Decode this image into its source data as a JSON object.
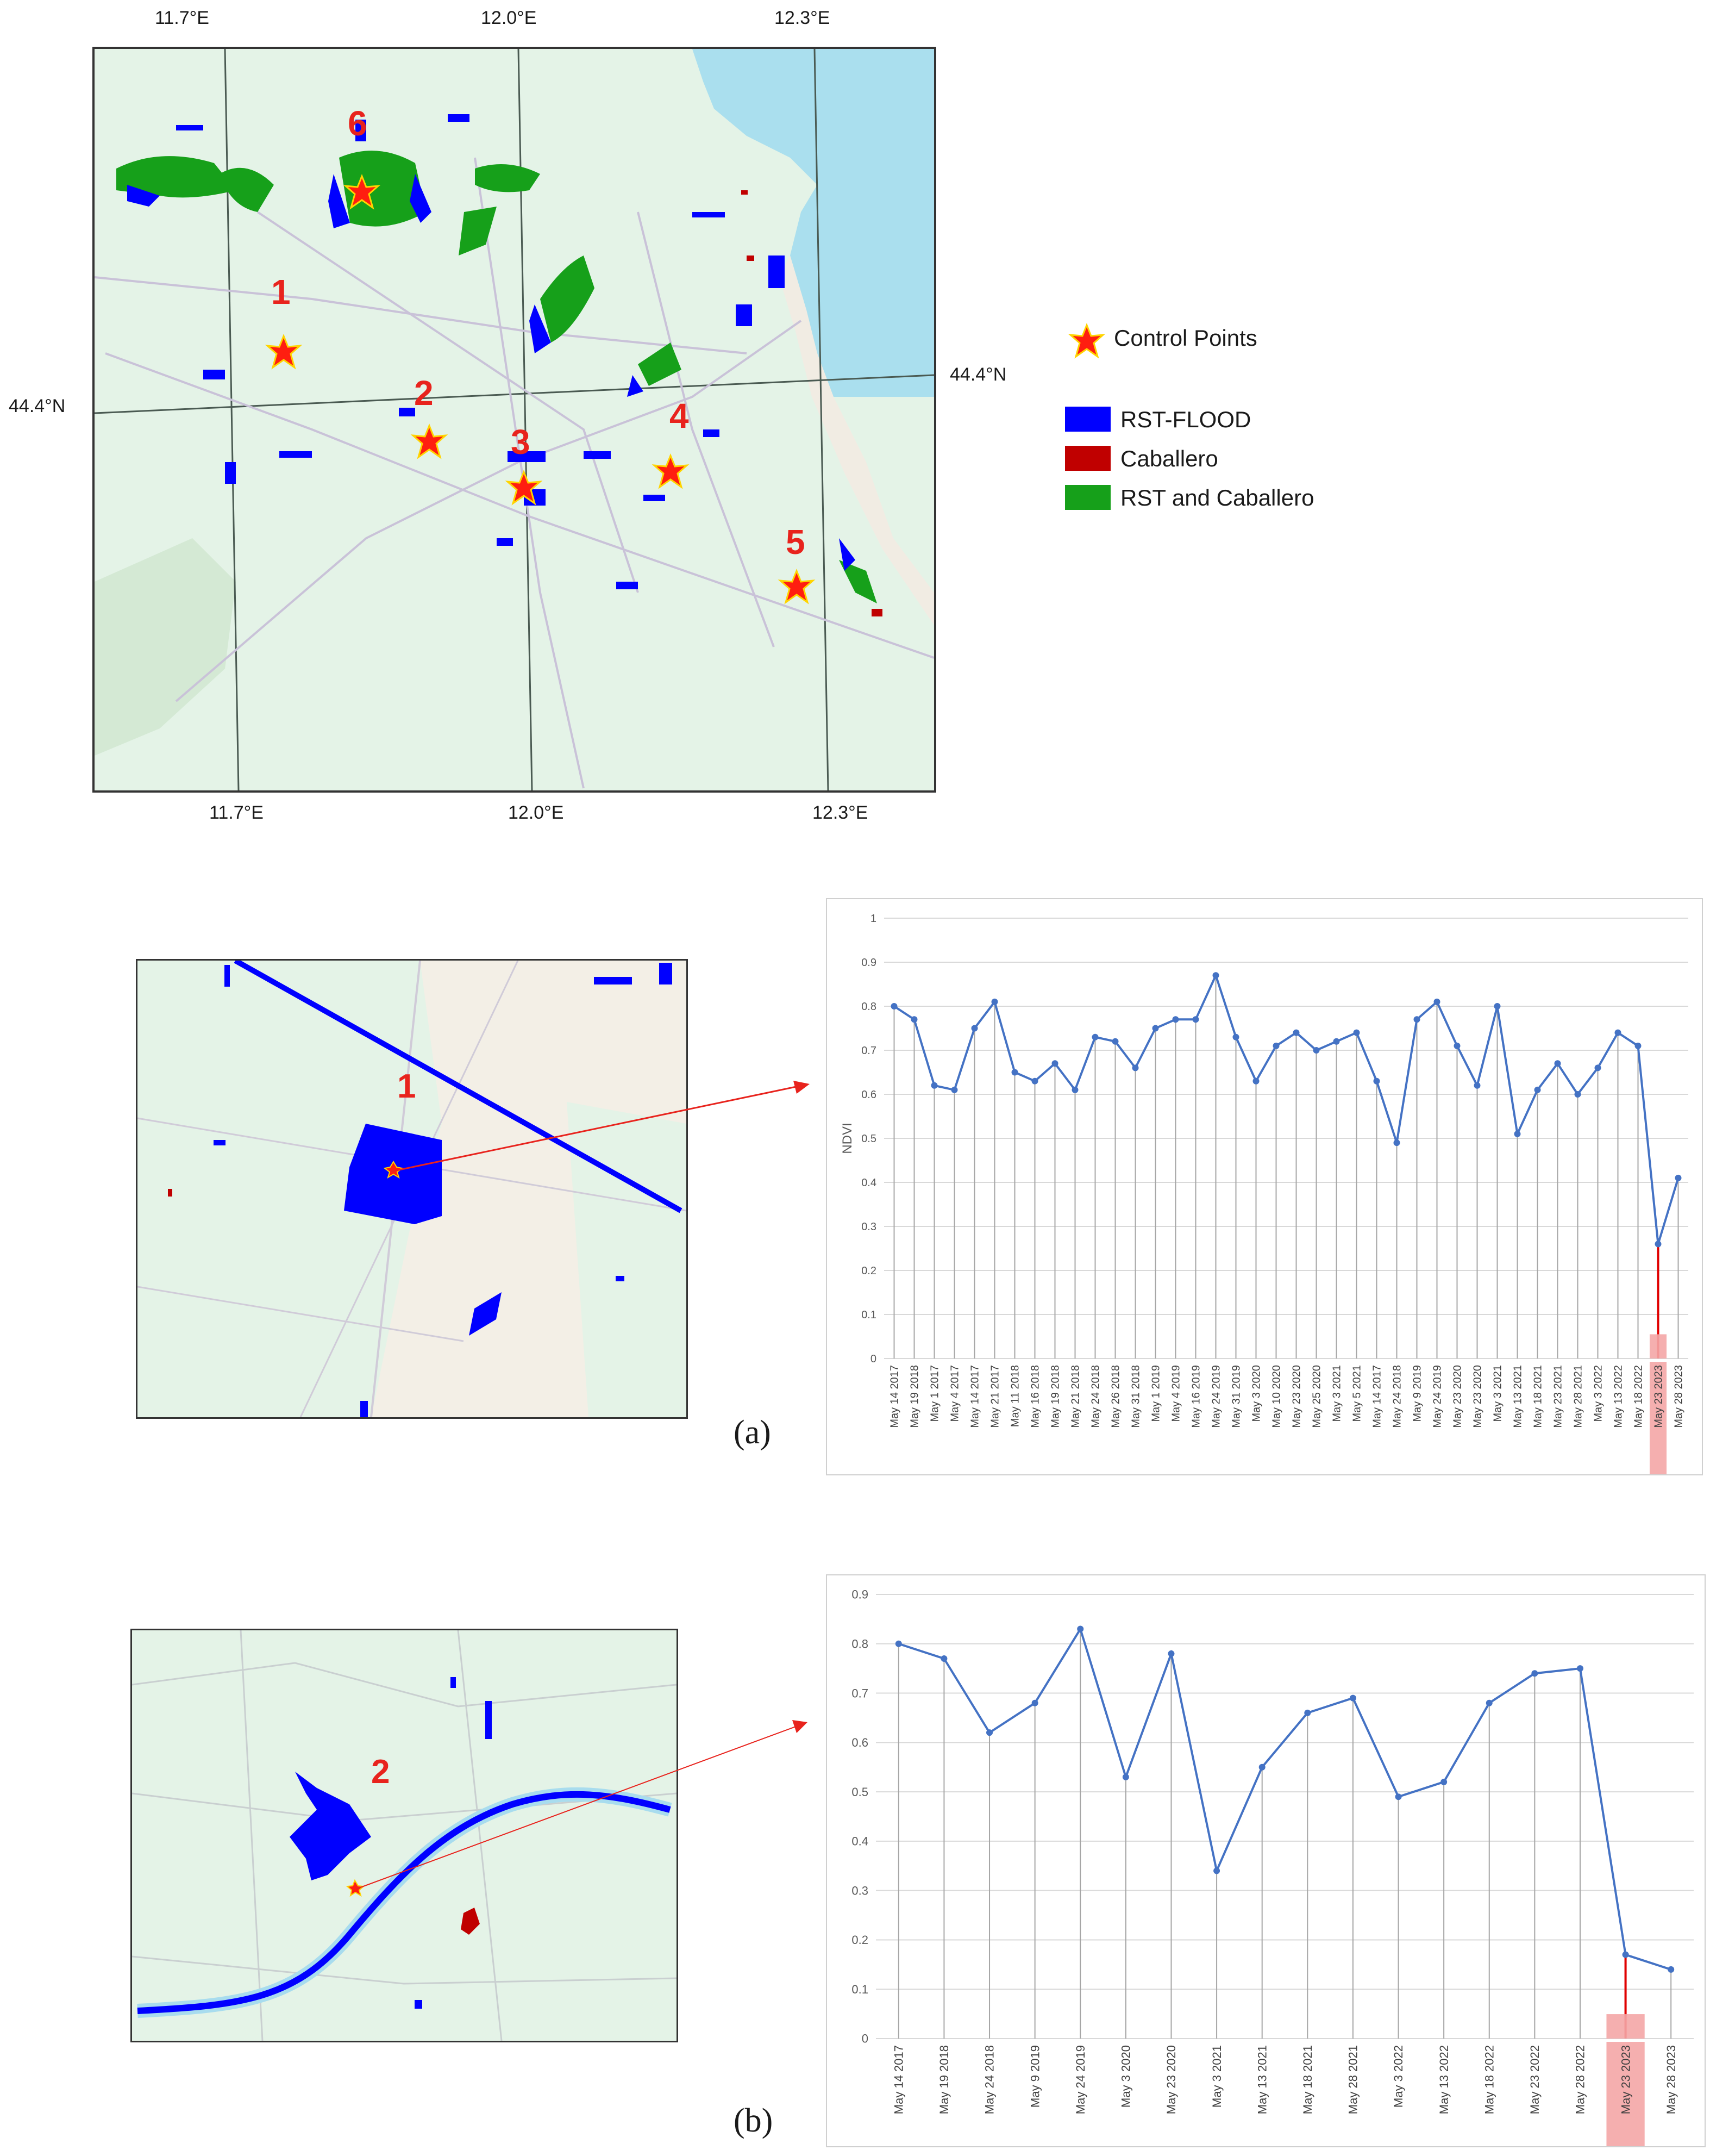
{
  "map": {
    "top_axis": [
      "11.7°E",
      "12.0°E",
      "12.3°E"
    ],
    "bottom_axis": [
      "11.7°E",
      "12.0°E",
      "12.3°E"
    ],
    "left_axis": "44.4°N",
    "right_axis": "44.4°N",
    "control_points": [
      "1",
      "2",
      "3",
      "4",
      "5",
      "6"
    ]
  },
  "legend": {
    "control_points": "Control Points",
    "rst_flood": "RST-FLOOD",
    "caballero": "Caballero",
    "rst_and_caballero": "RST and Caballero",
    "colors": {
      "rst_flood": "#0000ff",
      "caballero": "#c00000",
      "rst_and_caballero": "#16a01a",
      "star": "#ff1e10"
    }
  },
  "inset_a": {
    "point": "1"
  },
  "inset_b": {
    "point": "2"
  },
  "labels": {
    "a": "(a)",
    "b": "(b)"
  },
  "chart_data": [
    {
      "type": "line",
      "ylabel": "NDVI",
      "ylim": [
        0,
        1
      ],
      "yticks": [
        "0",
        "0.1",
        "0.2",
        "0.3",
        "0.4",
        "0.5",
        "0.6",
        "0.7",
        "0.8",
        "0.9",
        "1"
      ],
      "highlight": "May 23 2023",
      "categories": [
        "May 14 2017",
        "May 19 2018",
        "May 1 2017",
        "May 4 2017",
        "May 14 2017",
        "May 21 2017",
        "May 11 2018",
        "May 16 2018",
        "May 19 2018",
        "May 21 2018",
        "May 24 2018",
        "May 26 2018",
        "May 31 2018",
        "May 1 2019",
        "May 4 2019",
        "May 16 2019",
        "May 24 2019",
        "May 31 2019",
        "May 3 2020",
        "May 10 2020",
        "May 23 2020",
        "May 25 2020",
        "May 3 2021",
        "May 5 2021",
        "May 14 2017",
        "May 24 2018",
        "May 9 2019",
        "May 24 2019",
        "May 23 2020",
        "May 23 2020",
        "May 3 2021",
        "May 13 2021",
        "May 18 2021",
        "May 23 2021",
        "May 28 2021",
        "May 3 2022",
        "May 13 2022",
        "May 18 2022",
        "May 23 2023",
        "May 28 2023"
      ],
      "values": [
        0.8,
        0.77,
        0.62,
        0.61,
        0.75,
        0.81,
        0.65,
        0.63,
        0.67,
        0.61,
        0.73,
        0.72,
        0.66,
        0.75,
        0.77,
        0.77,
        0.87,
        0.73,
        0.63,
        0.71,
        0.74,
        0.7,
        0.72,
        0.74,
        0.63,
        0.49,
        0.77,
        0.81,
        0.71,
        0.62,
        0.8,
        0.51,
        0.61,
        0.67,
        0.6,
        0.66,
        0.74,
        0.71,
        0.26,
        0.41
      ]
    },
    {
      "type": "line",
      "ylim": [
        0,
        0.9
      ],
      "yticks": [
        "0",
        "0.1",
        "0.2",
        "0.3",
        "0.4",
        "0.5",
        "0.6",
        "0.7",
        "0.8",
        "0.9"
      ],
      "highlight": "May 23 2023",
      "categories": [
        "May 14 2017",
        "May 19 2018",
        "May 24 2018",
        "May 9 2019",
        "May 24 2019",
        "May 3 2020",
        "May 23 2020",
        "May 3 2021",
        "May 13 2021",
        "May 18 2021",
        "May 28 2021",
        "May 3 2022",
        "May 13 2022",
        "May 18 2022",
        "May 23 2022",
        "May 28 2022",
        "May 23 2023",
        "May 28 2023"
      ],
      "values": [
        0.8,
        0.77,
        0.62,
        0.68,
        0.83,
        0.53,
        0.78,
        0.34,
        0.55,
        0.66,
        0.69,
        0.49,
        0.52,
        0.68,
        0.74,
        0.75,
        0.17,
        0.14
      ]
    }
  ]
}
